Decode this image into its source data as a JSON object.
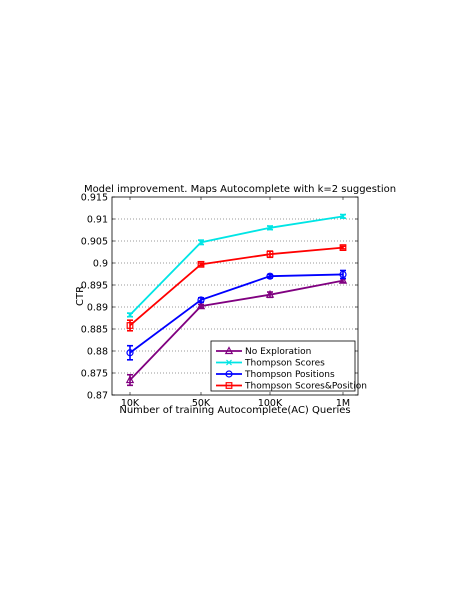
{
  "chart_data": {
    "type": "line",
    "title": "Model improvement. Maps Autocomplete with k=2 suggestion",
    "xlabel": "Number of training Autocomplete(AC) Queries",
    "ylabel": "CTR",
    "categories": [
      "10K",
      "50K",
      "100K",
      "1M"
    ],
    "ylim": [
      0.87,
      0.915
    ],
    "yticks": [
      "0.87",
      "0.875",
      "0.88",
      "0.885",
      "0.89",
      "0.895",
      "0.9",
      "0.905",
      "0.91",
      "0.915"
    ],
    "grid": "horizontal",
    "legend_position": "bottom-right",
    "series": [
      {
        "name": "No Exploration",
        "color": "#800080",
        "marker": "triangle",
        "values": [
          0.8734,
          0.8902,
          0.8928,
          0.896
        ],
        "errors": [
          0.0012,
          0.0004,
          0.0006,
          0.0004
        ]
      },
      {
        "name": "Thompson Scores",
        "color": "#00E5E5",
        "marker": "x",
        "values": [
          0.8882,
          0.9047,
          0.908,
          0.9106
        ],
        "errors": [
          0.0004,
          0.0005,
          0.0004,
          0.0004
        ]
      },
      {
        "name": "Thompson Positions",
        "color": "#0000FF",
        "marker": "circle",
        "values": [
          0.8796,
          0.8916,
          0.897,
          0.8974
        ],
        "errors": [
          0.0016,
          0.0005,
          0.0004,
          0.0009
        ]
      },
      {
        "name": "Thompson Scores&Position",
        "color": "#FF0000",
        "marker": "square",
        "values": [
          0.8858,
          0.8997,
          0.902,
          0.9035
        ],
        "errors": [
          0.0012,
          0.0003,
          0.0007,
          0.0003
        ]
      }
    ]
  }
}
